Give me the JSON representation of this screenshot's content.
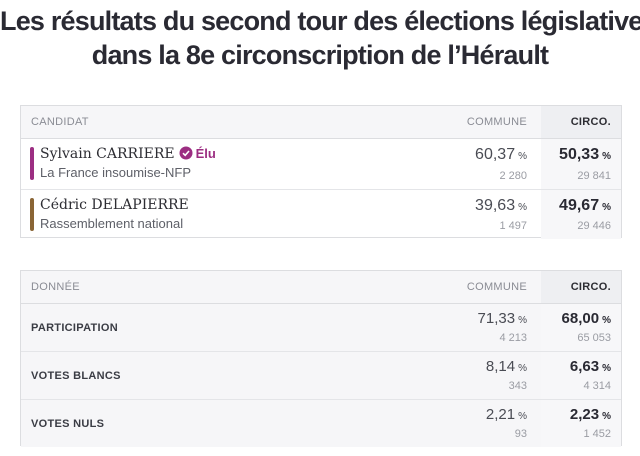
{
  "title": {
    "line1": "Les résultats du second tour des élections législatives",
    "line2": "dans la 8e circonscription de l’Hérault"
  },
  "results_table": {
    "headers": {
      "candidate": "CANDIDAT",
      "commune": "COMMUNE",
      "circo": "CIRCO."
    },
    "candidates": [
      {
        "name": "Sylvain CARRIERE",
        "elected_label": "Élu",
        "party": "La France insoumise-NFP",
        "color": "#9c2e82",
        "commune_pct": "60,37",
        "commune_votes": "2 280",
        "circo_pct": "50,33",
        "circo_votes": "29 841",
        "unit": "%"
      },
      {
        "name": "Cédric DELAPIERRE",
        "elected_label": "",
        "party": "Rassemblement national",
        "color": "#8a6535",
        "commune_pct": "39,63",
        "commune_votes": "1 497",
        "circo_pct": "49,67",
        "circo_votes": "29 446",
        "unit": "%"
      }
    ]
  },
  "data_table": {
    "headers": {
      "label": "DONNÉE",
      "commune": "COMMUNE",
      "circo": "CIRCO."
    },
    "rows": [
      {
        "label": "PARTICIPATION",
        "commune_pct": "71,33",
        "commune_count": "4 213",
        "circo_pct": "68,00",
        "circo_count": "65 053",
        "unit": "%"
      },
      {
        "label": "VOTES BLANCS",
        "commune_pct": "8,14",
        "commune_count": "343",
        "circo_pct": "6,63",
        "circo_count": "4 314",
        "unit": "%"
      },
      {
        "label": "VOTES NULS",
        "commune_pct": "2,21",
        "commune_count": "93",
        "circo_pct": "2,23",
        "circo_count": "1 452",
        "unit": "%"
      }
    ]
  },
  "icons": {
    "elected_badge": "check-badge-icon"
  }
}
